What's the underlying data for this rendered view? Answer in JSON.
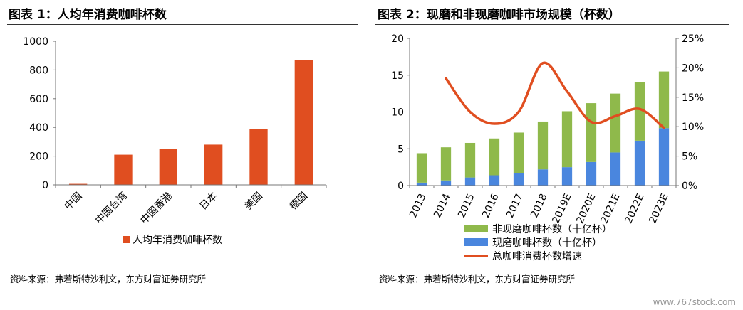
{
  "figure1": {
    "title": "图表 1：人均年消费咖啡杯数",
    "source": "资料来源：弗若斯特沙利文，东方财富证券研究所"
  },
  "figure2": {
    "title": "图表 2：现磨和非现磨咖啡市场规模（杯数）",
    "source": "资料来源：弗若斯特沙利文，东方财富证券研究所"
  },
  "watermark": "www.767stock.com",
  "colors": {
    "red": "#E04E20",
    "green": "#8FB94B",
    "blue": "#4A86DE",
    "line": "#E04E20"
  },
  "chart_data": [
    {
      "type": "bar",
      "categories": [
        "中国",
        "中国台湾",
        "中国香港",
        "日本",
        "美国",
        "德国"
      ],
      "series": [
        {
          "name": "人均年消费咖啡杯数",
          "values": [
            7,
            210,
            250,
            280,
            390,
            870
          ]
        }
      ],
      "yticks": [
        "0",
        "200",
        "400",
        "600",
        "800",
        "1000"
      ],
      "ylim": [
        0,
        1000
      ],
      "legend_position": "bottom"
    },
    {
      "type": "bar",
      "stacked": true,
      "categories": [
        "2013",
        "2014",
        "2015",
        "2016",
        "2017",
        "2018",
        "2019E",
        "2020E",
        "2021E",
        "2022E",
        "2023E"
      ],
      "series": [
        {
          "name": "非现磨咖啡杯数（十亿杯）",
          "values": [
            4.0,
            4.5,
            4.7,
            5.0,
            5.5,
            6.5,
            7.6,
            8.0,
            8.0,
            8.0,
            7.7
          ]
        },
        {
          "name": "现磨咖啡杯数（十亿杯）",
          "values": [
            0.4,
            0.7,
            1.1,
            1.4,
            1.7,
            2.2,
            2.5,
            3.2,
            4.5,
            6.1,
            7.8
          ]
        }
      ],
      "line_series": {
        "name": "总咖啡消费杯数增速",
        "axis": "right",
        "x": [
          "2014",
          "2015",
          "2016",
          "2017",
          "2018",
          "2019E",
          "2020E",
          "2021E",
          "2022E",
          "2023E"
        ],
        "values": [
          18.2,
          12.5,
          10.5,
          12.5,
          20.8,
          16.0,
          10.8,
          11.8,
          13.0,
          9.8
        ]
      },
      "ylim_left": [
        0,
        20
      ],
      "yticks_left": [
        "0",
        "5",
        "10",
        "15",
        "20"
      ],
      "ylim_right": [
        0,
        25
      ],
      "yticks_right": [
        "0%",
        "5%",
        "10%",
        "15%",
        "20%",
        "25%"
      ],
      "legend_position": "bottom"
    }
  ]
}
